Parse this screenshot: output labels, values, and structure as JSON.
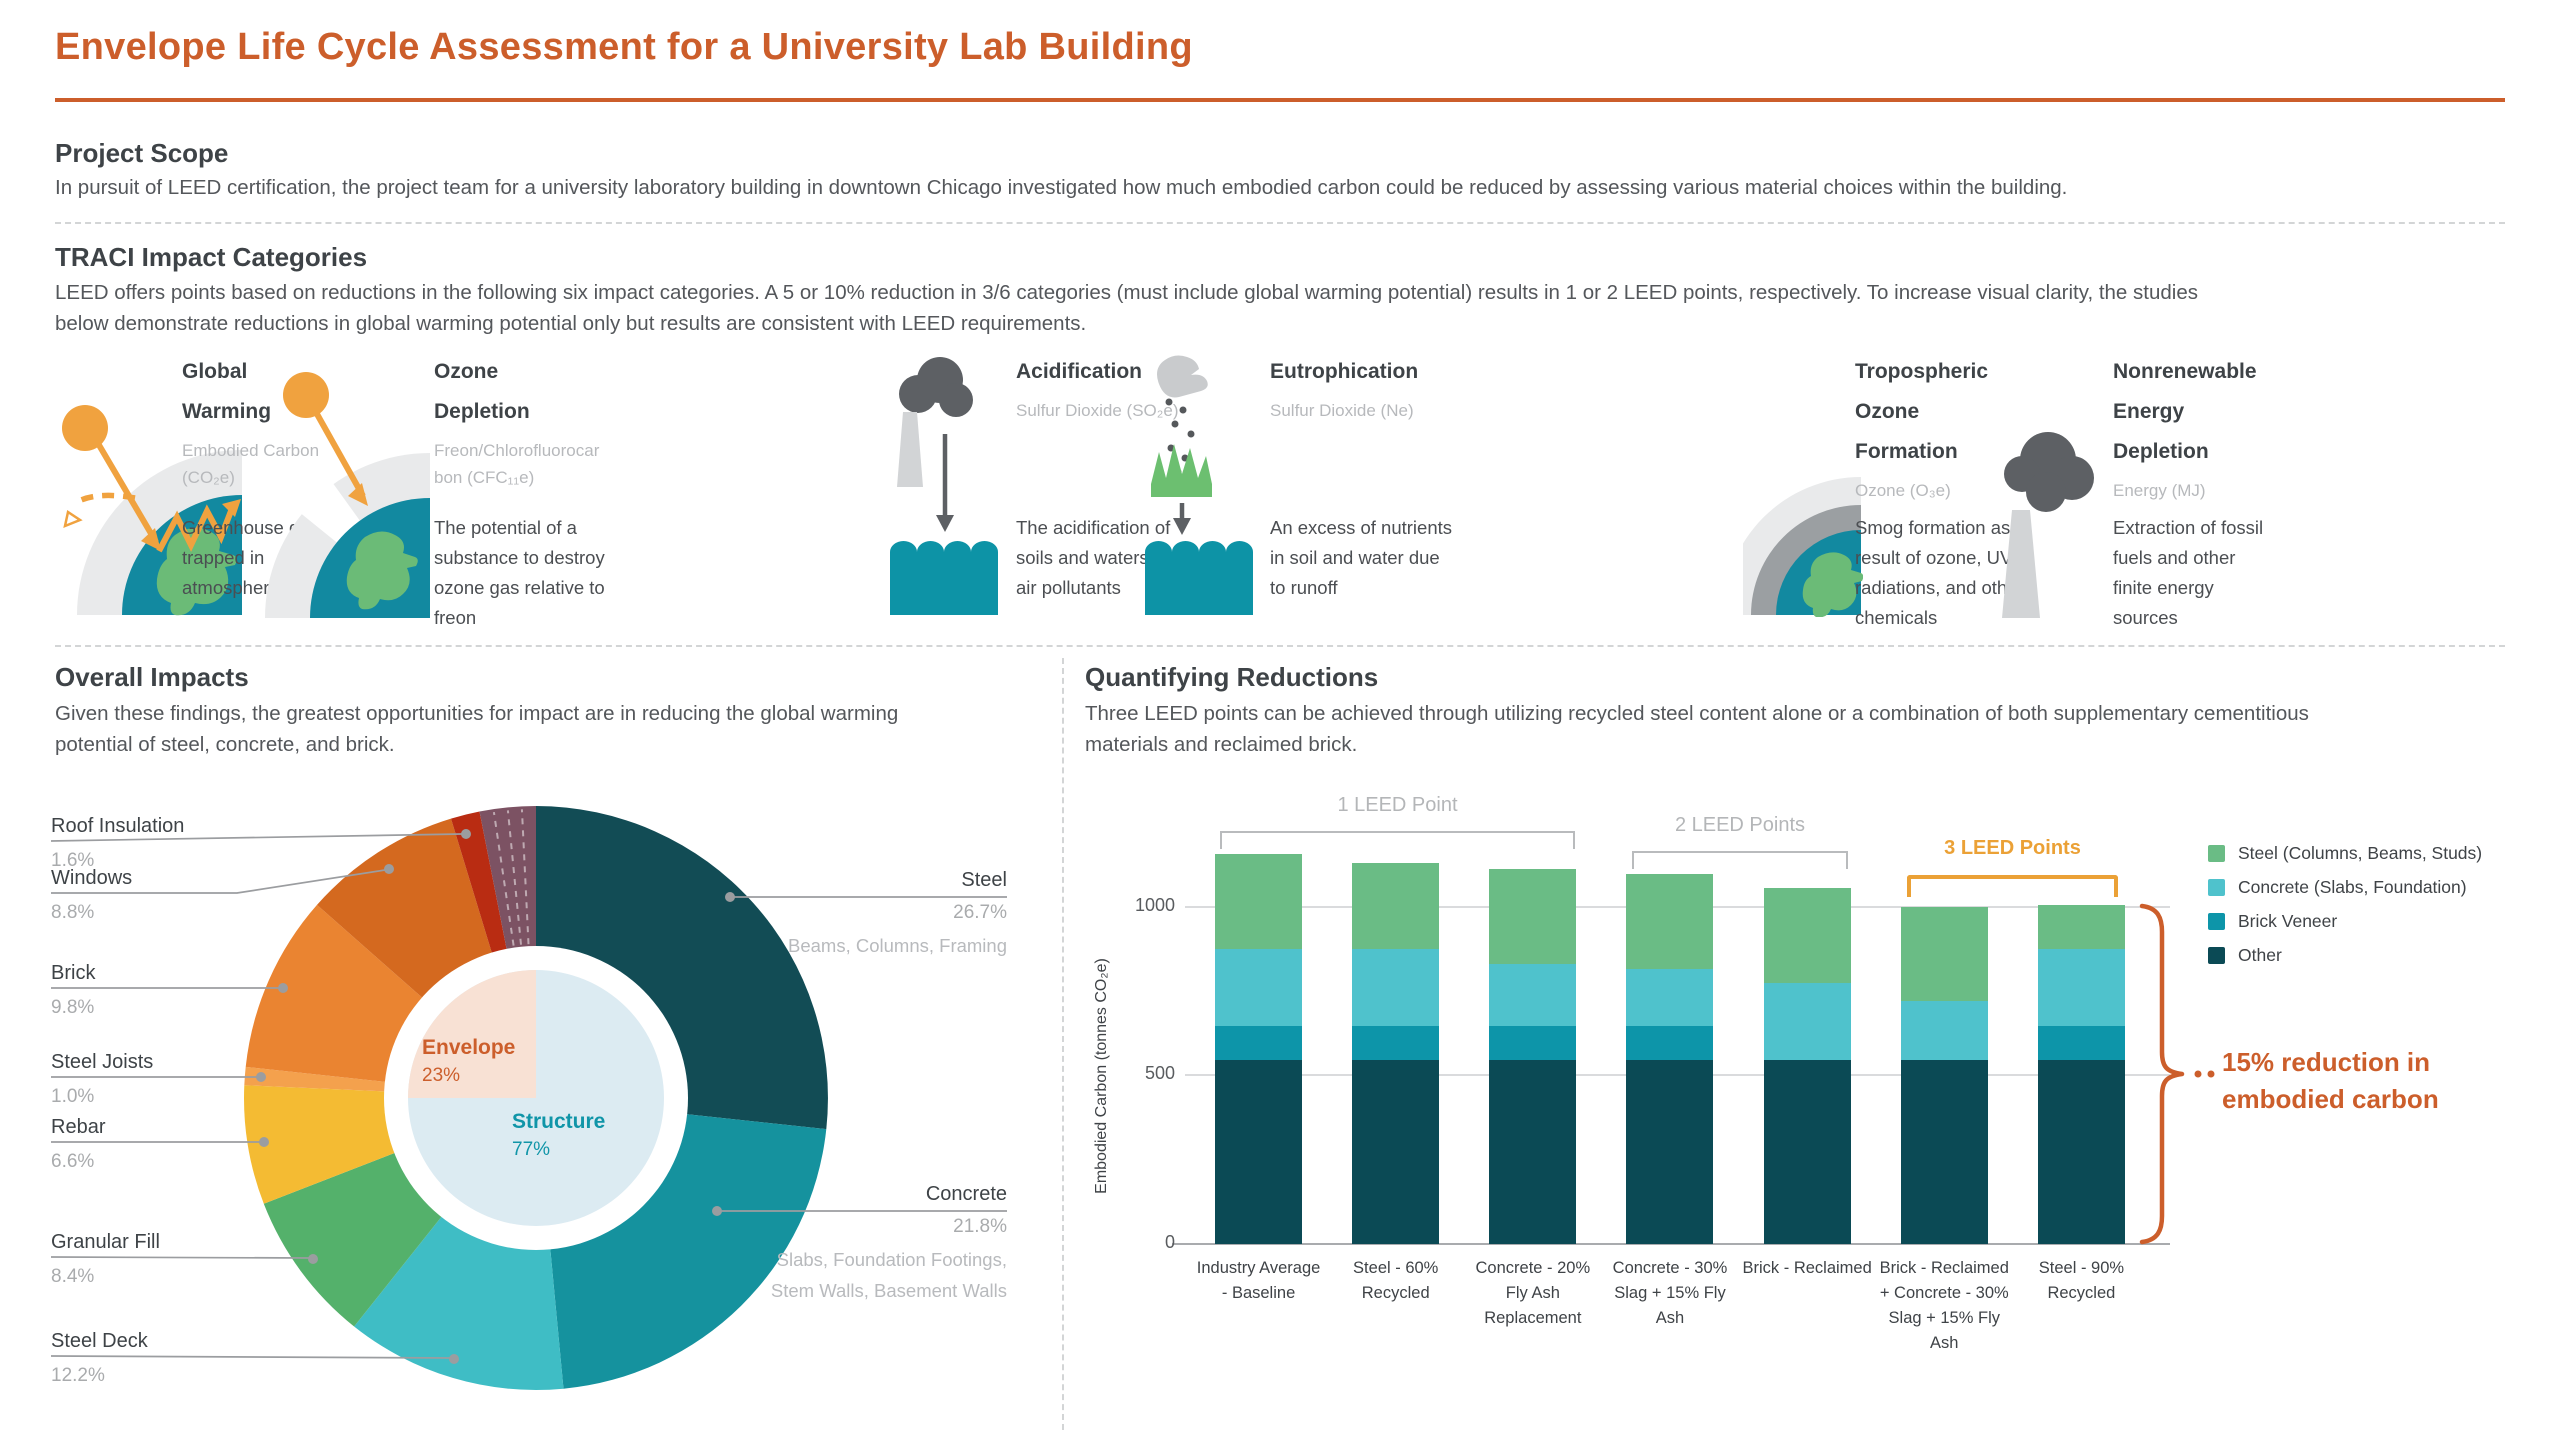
{
  "page": {
    "title": "Envelope Life Cycle Assessment for a University Lab Building",
    "accent_color": "#cc5e2b",
    "amber_color": "#eba136"
  },
  "project_scope": {
    "heading": "Project Scope",
    "body": "In pursuit of LEED certification, the project team for a university laboratory building in downtown Chicago investigated how much embodied carbon could be reduced by assessing various material choices within the building."
  },
  "traci": {
    "heading": "TRACI Impact Categories",
    "body": "LEED offers points based on reductions in the following six impact categories. A 5 or 10% reduction in 3/6 categories (must include global warming potential) results in 1 or 2 LEED points, respectively. To increase visual clarity, the studies\nbelow demonstrate reductions in global warming potential only but results are consistent with LEED requirements.",
    "categories": [
      {
        "icon": "global-warming-icon",
        "title": "Global Warming",
        "subtitle": "Embodied Carbon\n(CO₂e)",
        "description": "Greenhouse gas trapped in atmosphere"
      },
      {
        "icon": "ozone-depletion-icon",
        "title": "Ozone Depletion",
        "subtitle": "Freon/Chlorofluorocar\nbon (CFC₁₁e)",
        "description": "The potential of a substance to destroy ozone gas relative to freon"
      },
      {
        "icon": "acidification-icon",
        "title": "Acidification",
        "subtitle": "Sulfur Dioxide (SO₂e)",
        "description": "The acidification of soils and waters via air pollutants"
      },
      {
        "icon": "eutrophication-icon",
        "title": "Eutrophication",
        "subtitle": "Sulfur Dioxide (Ne)",
        "description": "An excess of nutrients in soil and water due to runoff"
      },
      {
        "icon": "tropospheric-ozone-icon",
        "title": "Tropospheric Ozone Formation",
        "subtitle": "Ozone (O₃e)",
        "description": "Smog formation as a result of ozone, UV radiations, and other chemicals"
      },
      {
        "icon": "energy-depletion-icon",
        "title": "Nonrenewable Energy Depletion",
        "subtitle": "Energy (MJ)",
        "description": "Extraction of fossil fuels and other finite energy sources"
      }
    ]
  },
  "overall_impacts": {
    "heading": "Overall Impacts",
    "body": "Given these findings, the greatest opportunities for impact are in reducing the global warming\npotential of steel, concrete, and brick."
  },
  "quantifying": {
    "heading": "Quantifying Reductions",
    "body": "Three LEED points can be achieved through utilizing recycled steel content alone or a combination of both supplementary cementitious\nmaterials and reclaimed brick."
  },
  "chart_data": [
    {
      "type": "pie",
      "subtype": "donut",
      "title": "Overall Impacts",
      "units": "percent of embodied carbon",
      "slices": [
        {
          "label": "Steel",
          "value": 26.7,
          "pct_text": "26.7%",
          "sublabel": "Beams, Columns, Framing",
          "color": "#124c55"
        },
        {
          "label": "Concrete",
          "value": 21.8,
          "pct_text": "21.8%",
          "sublabel": "Slabs, Foundation Footings, Stem Walls, Basement Walls",
          "color": "#15929e"
        },
        {
          "label": "Steel Deck",
          "value": 12.2,
          "pct_text": "12.2%",
          "color": "#3fbdc5"
        },
        {
          "label": "Granular Fill",
          "value": 8.4,
          "pct_text": "8.4%",
          "color": "#54b16b"
        },
        {
          "label": "Rebar",
          "value": 6.6,
          "pct_text": "6.6%",
          "color": "#f4bb33"
        },
        {
          "label": "Steel Joists",
          "value": 1.0,
          "pct_text": "1.0%",
          "color": "#f4a14d"
        },
        {
          "label": "Brick",
          "value": 9.8,
          "pct_text": "9.8%",
          "color": "#ea8431"
        },
        {
          "label": "Windows",
          "value": 8.8,
          "pct_text": "8.8%",
          "color": "#d4691f"
        },
        {
          "label": "Roof Insulation",
          "value": 1.6,
          "pct_text": "1.6%",
          "color": "#b92c12"
        },
        {
          "label": "Other envelope (unlabeled)",
          "value": 3.1,
          "pct_text": "",
          "color": "#7c5263",
          "dashed_dividers": 3
        }
      ],
      "inner": {
        "envelope": {
          "label": "Envelope",
          "pct_text": "23%"
        },
        "structure": {
          "label": "Structure",
          "pct_text": "77%"
        }
      }
    },
    {
      "type": "bar",
      "stacked": true,
      "ylabel": "Embodied Carbon (tonnes CO₂e)",
      "ymax": 1200,
      "ytick_labels": [
        "0",
        "500",
        "1000"
      ],
      "series": [
        {
          "key": "other",
          "color": "#0b4a55"
        },
        {
          "key": "brick_veneer",
          "color": "#0d95a9"
        },
        {
          "key": "concrete",
          "color": "#4fc2cc"
        },
        {
          "key": "steel",
          "color": "#6abc85"
        }
      ],
      "legend": [
        {
          "label": "Steel (Columns, Beams, Studs)",
          "color": "#6abc85"
        },
        {
          "label": "Concrete (Slabs, Foundation)",
          "color": "#4fc2cc"
        },
        {
          "label": "Brick Veneer",
          "color": "#0d95a9"
        },
        {
          "label": "Other",
          "color": "#0b4a55"
        }
      ],
      "bars": [
        {
          "label": "Industry Average - Baseline",
          "values": {
            "other": 545,
            "brick_veneer": 100,
            "concrete": 230,
            "steel": 280
          },
          "total": 1155
        },
        {
          "label": "Steel - 60% Recycled",
          "values": {
            "other": 545,
            "brick_veneer": 100,
            "concrete": 230,
            "steel": 255
          },
          "total": 1130
        },
        {
          "label": "Concrete - 20% Fly Ash Replacement",
          "values": {
            "other": 545,
            "brick_veneer": 100,
            "concrete": 185,
            "steel": 280
          },
          "total": 1110
        },
        {
          "label": "Concrete - 30% Slag + 15% Fly Ash",
          "values": {
            "other": 545,
            "brick_veneer": 100,
            "concrete": 170,
            "steel": 280
          },
          "total": 1095
        },
        {
          "label": "Brick - Reclaimed",
          "values": {
            "other": 545,
            "brick_veneer": 0,
            "concrete": 230,
            "steel": 280
          },
          "total": 1055
        },
        {
          "label": "Brick - Reclaimed + Concrete - 30% Slag + 15% Fly Ash",
          "values": {
            "other": 545,
            "brick_veneer": 0,
            "concrete": 175,
            "steel": 280
          },
          "total": 1000
        },
        {
          "label": "Steel - 90% Recycled",
          "values": {
            "other": 545,
            "brick_veneer": 100,
            "concrete": 230,
            "steel": 130
          },
          "total": 1005
        }
      ],
      "groups": [
        {
          "label": "1 LEED Point"
        },
        {
          "label": "2 LEED Points"
        },
        {
          "label": "3 LEED Points",
          "highlight": true
        }
      ],
      "reduction_note": "15% reduction in embodied carbon"
    }
  ]
}
